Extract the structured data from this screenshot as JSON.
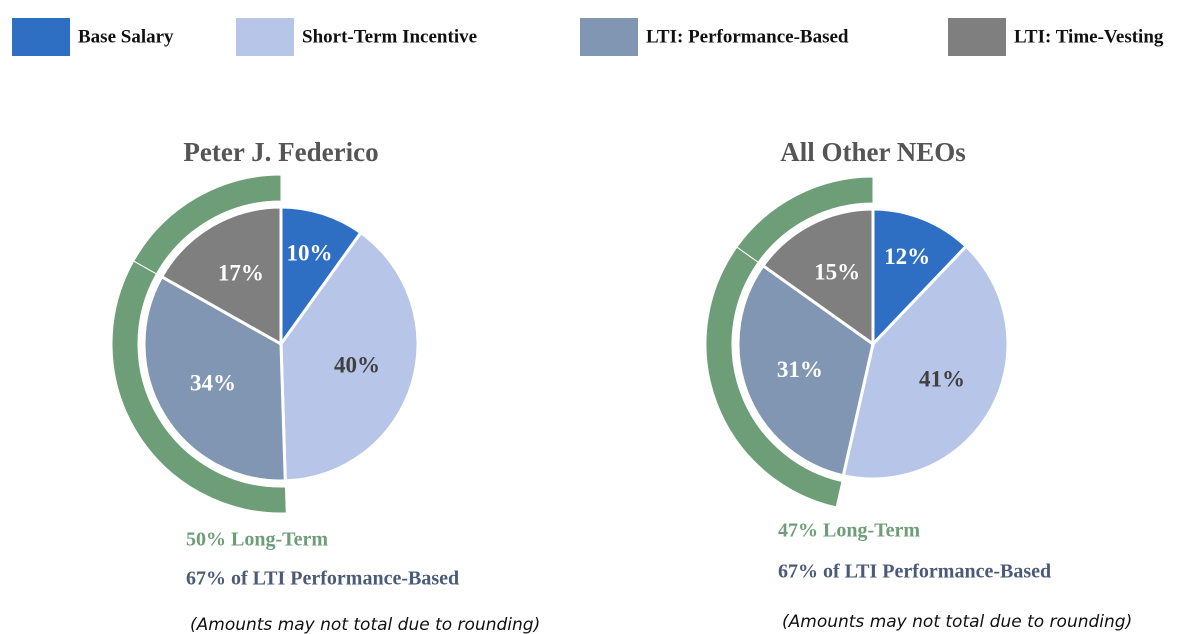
{
  "legend": {
    "labels": [
      "Base Salary",
      "Short-Term Incentive",
      "LTI: Performance-Based",
      "LTI: Time-Vesting"
    ],
    "colors": [
      "#2e6fc4",
      "#b7c6e8",
      "#8096b3",
      "#7f7f7f"
    ],
    "ring_color": "#6d9e78"
  },
  "chart_data": [
    {
      "type": "pie",
      "title": "Peter J. Federico",
      "values": [
        10,
        40,
        34,
        17
      ],
      "value_labels": [
        "10%",
        "40%",
        "34%",
        "17%"
      ],
      "annotations": [
        "50% Long-Term",
        "67% of LTI Performance-Based",
        "(Amounts may not total due to rounding)"
      ]
    },
    {
      "type": "pie",
      "title": "All Other NEOs",
      "values": [
        12,
        41,
        31,
        15
      ],
      "value_labels": [
        "12%",
        "41%",
        "31%",
        "15%"
      ],
      "annotations": [
        "47% Long-Term",
        "67% of LTI Performance-Based",
        "(Amounts may not total due to rounding)"
      ]
    }
  ]
}
